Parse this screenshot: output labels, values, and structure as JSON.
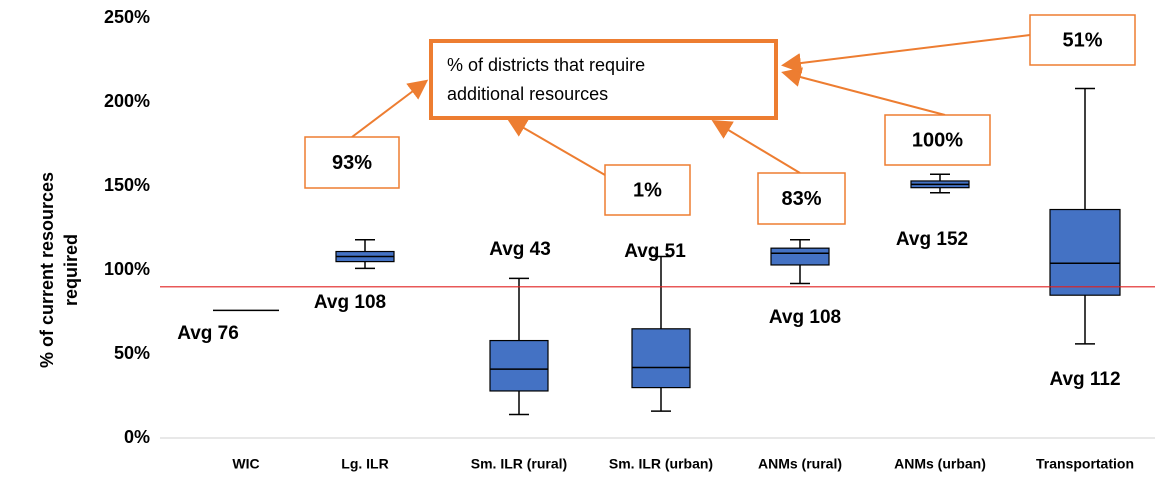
{
  "chart_data": {
    "type": "box",
    "ylabel": [
      "% of current resources",
      "required"
    ],
    "categories": [
      "WIC",
      "Lg. ILR",
      "Sm. ILR (rural)",
      "Sm. ILR (urban)",
      "ANMs (rural)",
      "ANMs (urban)",
      "Transportation"
    ],
    "boxes": [
      {
        "low": 76,
        "q1": 76,
        "median": 76,
        "q3": 76,
        "high": 76
      },
      {
        "low": 101,
        "q1": 105,
        "median": 108,
        "q3": 111,
        "high": 118
      },
      {
        "low": 14,
        "q1": 28,
        "median": 41,
        "q3": 58,
        "high": 95
      },
      {
        "low": 16,
        "q1": 30,
        "median": 42,
        "q3": 65,
        "high": 108
      },
      {
        "low": 92,
        "q1": 103,
        "median": 110,
        "q3": 113,
        "high": 118
      },
      {
        "low": 146,
        "q1": 149,
        "median": 151,
        "q3": 153,
        "high": 157
      },
      {
        "low": 56,
        "q1": 85,
        "median": 104,
        "q3": 136,
        "high": 208
      }
    ],
    "color": "#4472c4",
    "avg_labels": [
      "Avg 76",
      "Avg  108",
      "Avg  43",
      "Avg  51",
      "Avg 108",
      "Avg  152",
      "Avg  112"
    ],
    "share_labels": [
      "93%",
      "1%",
      "83%",
      "100%",
      "51%"
    ],
    "callout": [
      "% of districts that require",
      "additional resources"
    ],
    "annotation_color": "#ed7d31",
    "reference_line": 90,
    "reference_color": "#e02020",
    "ylim": [
      0,
      250
    ],
    "yticks": [
      {
        "value": 0,
        "label": "0%"
      },
      {
        "value": 50,
        "label": "50%"
      },
      {
        "value": 100,
        "label": "100%"
      },
      {
        "value": 150,
        "label": "150%"
      },
      {
        "value": 200,
        "label": "200%"
      },
      {
        "value": 250,
        "label": "250%"
      }
    ]
  }
}
